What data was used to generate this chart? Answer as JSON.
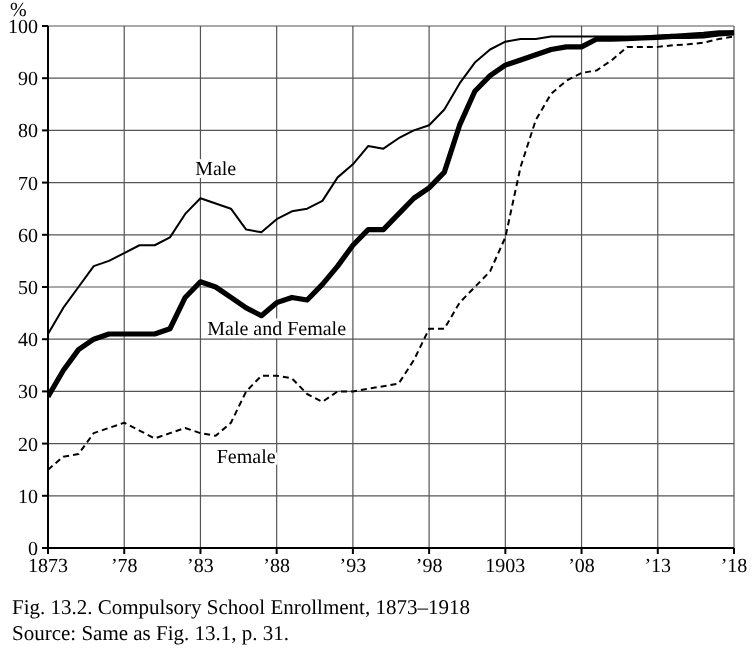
{
  "chart_data": {
    "type": "line",
    "title": "Fig. 13.2. Compulsory School Enrollment, 1873–1918",
    "ylabel": "%",
    "annotations": [
      "Source: Same as Fig. 13.1, p. 31."
    ],
    "x": [
      1873,
      1874,
      1875,
      1876,
      1877,
      1878,
      1879,
      1880,
      1881,
      1882,
      1883,
      1884,
      1885,
      1886,
      1887,
      1888,
      1889,
      1890,
      1891,
      1892,
      1893,
      1894,
      1895,
      1896,
      1897,
      1898,
      1899,
      1900,
      1901,
      1902,
      1903,
      1904,
      1905,
      1906,
      1907,
      1908,
      1909,
      1910,
      1911,
      1912,
      1913,
      1914,
      1915,
      1916,
      1917,
      1918
    ],
    "series": [
      {
        "name": "Male",
        "color": "#000000",
        "line_style": "solid",
        "values": [
          41,
          46,
          50,
          54,
          55,
          56.5,
          58,
          58,
          59.5,
          64,
          67,
          66,
          65,
          61,
          60.5,
          63,
          64.5,
          65,
          66.5,
          71,
          73.5,
          77,
          76.5,
          78.5,
          80,
          81,
          84,
          89,
          93,
          95.5,
          97,
          97.5,
          97.5,
          98,
          98,
          98,
          98,
          98,
          98,
          98,
          98.2,
          98.3,
          98.5,
          98.7,
          99,
          99
        ]
      },
      {
        "name": "Male and Female",
        "color": "#000000",
        "line_style": "solid",
        "values": [
          29,
          34,
          38,
          40,
          41,
          41,
          41,
          41,
          42,
          48,
          51,
          50,
          48,
          46,
          44.5,
          47,
          48,
          47.5,
          50.5,
          54,
          58,
          61,
          61,
          64,
          67,
          69,
          72,
          81,
          87.5,
          90.5,
          92.5,
          93.5,
          94.5,
          95.5,
          96,
          96,
          97.5,
          97.5,
          97.6,
          97.7,
          97.8,
          98,
          98,
          98.1,
          98.5,
          98.7
        ]
      },
      {
        "name": "Female",
        "color": "#000000",
        "line_style": "dashed",
        "values": [
          15,
          17.5,
          18,
          22,
          23,
          24,
          22.5,
          21,
          22,
          23,
          22,
          21.5,
          24,
          30,
          33,
          33,
          32.5,
          29.5,
          28,
          30,
          30,
          30.5,
          31,
          31.5,
          36,
          42,
          42,
          47,
          50,
          53,
          59.5,
          73,
          82,
          87,
          89.5,
          91,
          91.5,
          93.5,
          96,
          96,
          96,
          96.3,
          96.5,
          96.8,
          97.5,
          98
        ]
      }
    ],
    "xlim": [
      1873,
      1918
    ],
    "xticks": [
      {
        "value": 1873,
        "label": "1873"
      },
      {
        "value": 1878,
        "label": "’78"
      },
      {
        "value": 1883,
        "label": "’83"
      },
      {
        "value": 1888,
        "label": "’88"
      },
      {
        "value": 1893,
        "label": "’93"
      },
      {
        "value": 1898,
        "label": "’98"
      },
      {
        "value": 1903,
        "label": "1903"
      },
      {
        "value": 1908,
        "label": "’08"
      },
      {
        "value": 1913,
        "label": "’13"
      },
      {
        "value": 1918,
        "label": "’18"
      }
    ],
    "ylim": [
      0,
      100
    ],
    "yticks": [
      0,
      10,
      20,
      30,
      40,
      50,
      60,
      70,
      80,
      90,
      100
    ],
    "grid": true,
    "legend": false,
    "marker": "none"
  }
}
